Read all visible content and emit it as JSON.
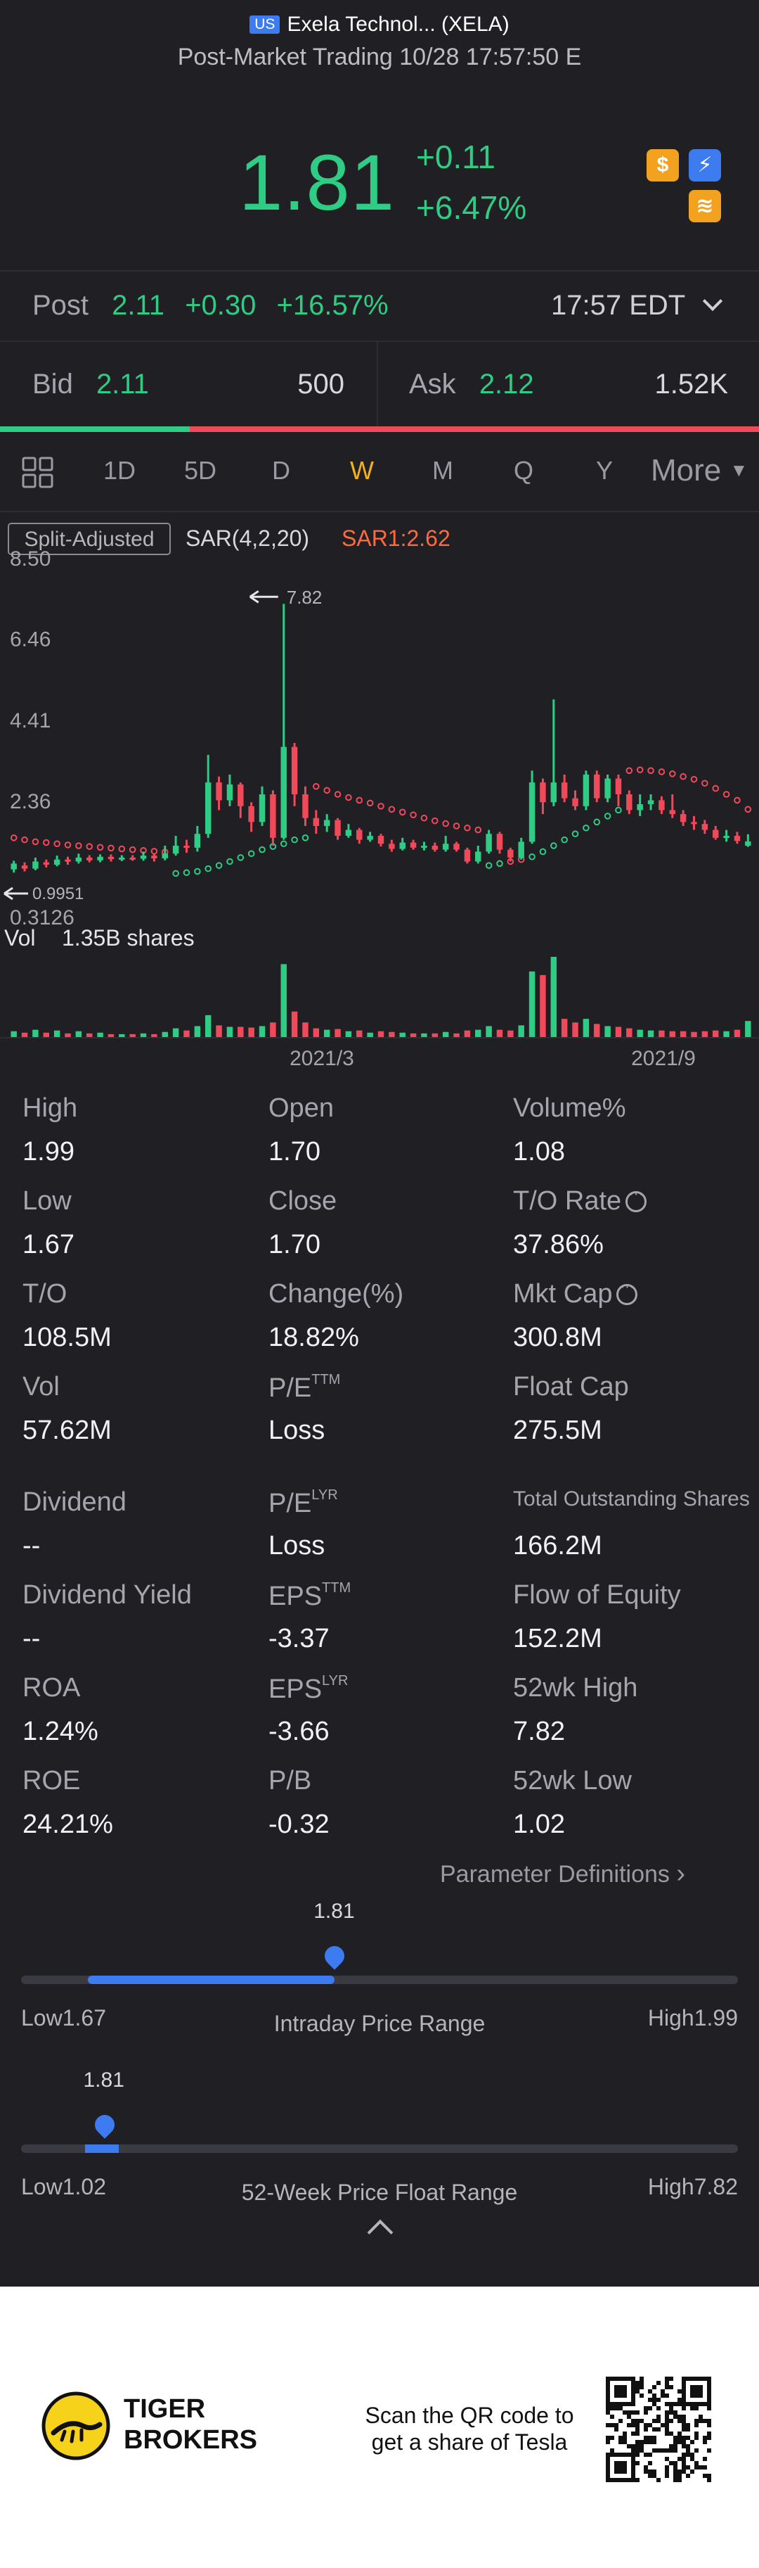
{
  "header": {
    "market_badge": "US",
    "title": "Exela Technol... (XELA)",
    "subtitle": "Post-Market Trading 10/28 17:57:50 E",
    "price": "1.81",
    "change": "+0.11",
    "change_pct": "+6.47%"
  },
  "post": {
    "label": "Post",
    "price": "2.11",
    "change": "+0.30",
    "change_pct": "+16.57%",
    "time": "17:57 EDT"
  },
  "quote": {
    "bid_label": "Bid",
    "bid_price": "2.11",
    "bid_size": "500",
    "ask_label": "Ask",
    "ask_price": "2.12",
    "ask_size": "1.52K",
    "bid_ratio": 0.25
  },
  "tabs": [
    {
      "label": "1D",
      "active": false
    },
    {
      "label": "5D",
      "active": false
    },
    {
      "label": "D",
      "active": false
    },
    {
      "label": "W",
      "active": true
    },
    {
      "label": "M",
      "active": false
    },
    {
      "label": "Q",
      "active": false
    },
    {
      "label": "Y",
      "active": false
    }
  ],
  "tabs_more": "More",
  "chart": {
    "adjust_label": "Split-Adjusted",
    "indicator": "SAR(4,2,20)",
    "indicator_value": "SAR1:2.62",
    "y_ticks": [
      "8.50",
      "6.46",
      "4.41",
      "2.36",
      "0.3126"
    ],
    "max_marker": "7.82",
    "min_marker": "0.9951",
    "vol_label": "Vol",
    "vol_value": "1.35B shares",
    "x_ticks": [
      "2021/3",
      "2021/9"
    ]
  },
  "chart_data": {
    "type": "candlestick",
    "ylim": [
      0.3126,
      8.5
    ],
    "bars": [
      {
        "o": 1.1,
        "c": 1.25,
        "h": 1.32,
        "l": 1.02,
        "v": 0.8
      },
      {
        "o": 1.2,
        "c": 1.12,
        "h": 1.28,
        "l": 1.05,
        "v": 0.6
      },
      {
        "o": 1.12,
        "c": 1.3,
        "h": 1.4,
        "l": 1.08,
        "v": 1.0
      },
      {
        "o": 1.28,
        "c": 1.22,
        "h": 1.35,
        "l": 1.15,
        "v": 0.6
      },
      {
        "o": 1.22,
        "c": 1.35,
        "h": 1.45,
        "l": 1.18,
        "v": 0.9
      },
      {
        "o": 1.35,
        "c": 1.3,
        "h": 1.42,
        "l": 1.22,
        "v": 0.5
      },
      {
        "o": 1.3,
        "c": 1.4,
        "h": 1.5,
        "l": 1.25,
        "v": 0.8
      },
      {
        "o": 1.4,
        "c": 1.33,
        "h": 1.46,
        "l": 1.28,
        "v": 0.5
      },
      {
        "o": 1.33,
        "c": 1.42,
        "h": 1.48,
        "l": 1.28,
        "v": 0.6
      },
      {
        "o": 1.42,
        "c": 1.36,
        "h": 1.48,
        "l": 1.3,
        "v": 0.4
      },
      {
        "o": 1.36,
        "c": 1.4,
        "h": 1.46,
        "l": 1.31,
        "v": 0.4
      },
      {
        "o": 1.4,
        "c": 1.37,
        "h": 1.46,
        "l": 1.32,
        "v": 0.4
      },
      {
        "o": 1.37,
        "c": 1.45,
        "h": 1.55,
        "l": 1.32,
        "v": 0.5
      },
      {
        "o": 1.45,
        "c": 1.38,
        "h": 1.5,
        "l": 1.3,
        "v": 0.4
      },
      {
        "o": 1.38,
        "c": 1.5,
        "h": 1.7,
        "l": 1.33,
        "v": 0.7
      },
      {
        "o": 1.5,
        "c": 1.7,
        "h": 1.95,
        "l": 1.45,
        "v": 1.2
      },
      {
        "o": 1.7,
        "c": 1.65,
        "h": 1.85,
        "l": 1.52,
        "v": 0.9
      },
      {
        "o": 1.65,
        "c": 2.0,
        "h": 2.2,
        "l": 1.55,
        "v": 1.5
      },
      {
        "o": 2.0,
        "c": 3.3,
        "h": 4.0,
        "l": 1.9,
        "v": 3.0
      },
      {
        "o": 3.3,
        "c": 2.85,
        "h": 3.45,
        "l": 2.6,
        "v": 1.6
      },
      {
        "o": 2.85,
        "c": 3.25,
        "h": 3.5,
        "l": 2.7,
        "v": 1.4
      },
      {
        "o": 3.25,
        "c": 2.7,
        "h": 3.3,
        "l": 2.4,
        "v": 1.4
      },
      {
        "o": 2.7,
        "c": 2.3,
        "h": 2.8,
        "l": 2.05,
        "v": 1.3
      },
      {
        "o": 2.3,
        "c": 3.0,
        "h": 3.2,
        "l": 2.2,
        "v": 1.5
      },
      {
        "o": 3.0,
        "c": 1.9,
        "h": 3.1,
        "l": 1.7,
        "v": 2.0
      },
      {
        "o": 1.9,
        "c": 4.2,
        "h": 7.82,
        "l": 1.85,
        "v": 10.0
      },
      {
        "o": 4.2,
        "c": 3.0,
        "h": 4.3,
        "l": 2.7,
        "v": 3.5
      },
      {
        "o": 3.0,
        "c": 2.4,
        "h": 3.2,
        "l": 2.2,
        "v": 2.0
      },
      {
        "o": 2.4,
        "c": 2.2,
        "h": 2.6,
        "l": 2.0,
        "v": 1.2
      },
      {
        "o": 2.2,
        "c": 2.35,
        "h": 2.5,
        "l": 2.05,
        "v": 1.0
      },
      {
        "o": 2.35,
        "c": 1.95,
        "h": 2.4,
        "l": 1.85,
        "v": 1.1
      },
      {
        "o": 1.95,
        "c": 2.1,
        "h": 2.25,
        "l": 1.9,
        "v": 0.8
      },
      {
        "o": 2.1,
        "c": 1.85,
        "h": 2.15,
        "l": 1.75,
        "v": 0.9
      },
      {
        "o": 1.85,
        "c": 1.95,
        "h": 2.05,
        "l": 1.8,
        "v": 0.6
      },
      {
        "o": 1.95,
        "c": 1.75,
        "h": 2.0,
        "l": 1.68,
        "v": 0.8
      },
      {
        "o": 1.75,
        "c": 1.62,
        "h": 1.85,
        "l": 1.55,
        "v": 0.7
      },
      {
        "o": 1.62,
        "c": 1.78,
        "h": 1.9,
        "l": 1.58,
        "v": 0.6
      },
      {
        "o": 1.78,
        "c": 1.65,
        "h": 1.85,
        "l": 1.6,
        "v": 0.5
      },
      {
        "o": 1.65,
        "c": 1.7,
        "h": 1.8,
        "l": 1.58,
        "v": 0.5
      },
      {
        "o": 1.7,
        "c": 1.6,
        "h": 1.78,
        "l": 1.55,
        "v": 0.5
      },
      {
        "o": 1.6,
        "c": 1.75,
        "h": 1.95,
        "l": 1.55,
        "v": 0.7
      },
      {
        "o": 1.75,
        "c": 1.6,
        "h": 1.8,
        "l": 1.55,
        "v": 0.5
      },
      {
        "o": 1.6,
        "c": 1.3,
        "h": 1.65,
        "l": 1.25,
        "v": 0.9
      },
      {
        "o": 1.3,
        "c": 1.55,
        "h": 1.7,
        "l": 1.25,
        "v": 1.0
      },
      {
        "o": 1.55,
        "c": 2.0,
        "h": 2.1,
        "l": 1.5,
        "v": 1.5
      },
      {
        "o": 2.0,
        "c": 1.6,
        "h": 2.05,
        "l": 1.5,
        "v": 1.0
      },
      {
        "o": 1.6,
        "c": 1.4,
        "h": 1.65,
        "l": 1.3,
        "v": 0.9
      },
      {
        "o": 1.4,
        "c": 1.8,
        "h": 1.9,
        "l": 1.35,
        "v": 1.6
      },
      {
        "o": 1.8,
        "c": 3.3,
        "h": 3.6,
        "l": 1.75,
        "v": 9.0
      },
      {
        "o": 3.3,
        "c": 2.8,
        "h": 3.4,
        "l": 2.5,
        "v": 8.5
      },
      {
        "o": 2.8,
        "c": 3.3,
        "h": 5.4,
        "l": 2.7,
        "v": 11.0
      },
      {
        "o": 3.3,
        "c": 2.9,
        "h": 3.5,
        "l": 2.8,
        "v": 2.5
      },
      {
        "o": 2.9,
        "c": 2.7,
        "h": 3.1,
        "l": 2.6,
        "v": 2.0
      },
      {
        "o": 2.7,
        "c": 3.5,
        "h": 3.6,
        "l": 2.6,
        "v": 2.5
      },
      {
        "o": 3.5,
        "c": 2.9,
        "h": 3.6,
        "l": 2.8,
        "v": 1.8
      },
      {
        "o": 2.9,
        "c": 3.4,
        "h": 3.5,
        "l": 2.8,
        "v": 1.5
      },
      {
        "o": 3.4,
        "c": 3.0,
        "h": 3.5,
        "l": 2.7,
        "v": 1.4
      },
      {
        "o": 3.0,
        "c": 2.6,
        "h": 3.1,
        "l": 2.5,
        "v": 1.2
      },
      {
        "o": 2.6,
        "c": 2.75,
        "h": 3.0,
        "l": 2.45,
        "v": 1.0
      },
      {
        "o": 2.75,
        "c": 2.85,
        "h": 3.0,
        "l": 2.6,
        "v": 0.9
      },
      {
        "o": 2.85,
        "c": 2.6,
        "h": 2.95,
        "l": 2.5,
        "v": 0.9
      },
      {
        "o": 2.6,
        "c": 2.5,
        "h": 3.0,
        "l": 2.4,
        "v": 0.8
      },
      {
        "o": 2.5,
        "c": 2.3,
        "h": 2.6,
        "l": 2.2,
        "v": 0.8
      },
      {
        "o": 2.3,
        "c": 2.25,
        "h": 2.45,
        "l": 2.1,
        "v": 0.7
      },
      {
        "o": 2.25,
        "c": 2.1,
        "h": 2.35,
        "l": 2.0,
        "v": 0.8
      },
      {
        "o": 2.1,
        "c": 1.9,
        "h": 2.2,
        "l": 1.85,
        "v": 0.9
      },
      {
        "o": 1.9,
        "c": 1.95,
        "h": 2.1,
        "l": 1.8,
        "v": 0.8
      },
      {
        "o": 1.95,
        "c": 1.82,
        "h": 2.05,
        "l": 1.75,
        "v": 1.0
      },
      {
        "o": 1.7,
        "c": 1.81,
        "h": 1.99,
        "l": 1.67,
        "v": 2.2
      }
    ],
    "sar_points": [
      {
        "i": 0,
        "v": 1.9
      },
      {
        "i": 1,
        "v": 1.85
      },
      {
        "i": 2,
        "v": 1.8
      },
      {
        "i": 3,
        "v": 1.78
      },
      {
        "i": 4,
        "v": 1.75
      },
      {
        "i": 5,
        "v": 1.72
      },
      {
        "i": 6,
        "v": 1.7
      },
      {
        "i": 7,
        "v": 1.68
      },
      {
        "i": 8,
        "v": 1.66
      },
      {
        "i": 9,
        "v": 1.64
      },
      {
        "i": 10,
        "v": 1.62
      },
      {
        "i": 11,
        "v": 1.6
      },
      {
        "i": 12,
        "v": 1.58
      },
      {
        "i": 13,
        "v": 1.56
      },
      {
        "i": 14,
        "v": 1.54
      },
      {
        "i": 15,
        "v": 1.0
      },
      {
        "i": 16,
        "v": 1.02
      },
      {
        "i": 17,
        "v": 1.05
      },
      {
        "i": 18,
        "v": 1.12
      },
      {
        "i": 19,
        "v": 1.2
      },
      {
        "i": 20,
        "v": 1.3
      },
      {
        "i": 21,
        "v": 1.4
      },
      {
        "i": 22,
        "v": 1.5
      },
      {
        "i": 23,
        "v": 1.6
      },
      {
        "i": 24,
        "v": 1.68
      },
      {
        "i": 25,
        "v": 1.75
      },
      {
        "i": 26,
        "v": 1.85
      },
      {
        "i": 27,
        "v": 1.9
      },
      {
        "i": 28,
        "v": 3.2
      },
      {
        "i": 29,
        "v": 3.1
      },
      {
        "i": 30,
        "v": 3.0
      },
      {
        "i": 31,
        "v": 2.92
      },
      {
        "i": 32,
        "v": 2.85
      },
      {
        "i": 33,
        "v": 2.78
      },
      {
        "i": 34,
        "v": 2.7
      },
      {
        "i": 35,
        "v": 2.62
      },
      {
        "i": 36,
        "v": 2.55
      },
      {
        "i": 37,
        "v": 2.48
      },
      {
        "i": 38,
        "v": 2.4
      },
      {
        "i": 39,
        "v": 2.33
      },
      {
        "i": 40,
        "v": 2.26
      },
      {
        "i": 41,
        "v": 2.2
      },
      {
        "i": 42,
        "v": 2.15
      },
      {
        "i": 43,
        "v": 2.1
      },
      {
        "i": 44,
        "v": 1.2
      },
      {
        "i": 45,
        "v": 1.25
      },
      {
        "i": 46,
        "v": 1.3
      },
      {
        "i": 47,
        "v": 1.35
      },
      {
        "i": 48,
        "v": 1.42
      },
      {
        "i": 49,
        "v": 1.55
      },
      {
        "i": 50,
        "v": 1.7
      },
      {
        "i": 51,
        "v": 1.85
      },
      {
        "i": 52,
        "v": 2.0
      },
      {
        "i": 53,
        "v": 2.15
      },
      {
        "i": 54,
        "v": 2.3
      },
      {
        "i": 55,
        "v": 2.45
      },
      {
        "i": 56,
        "v": 2.6
      },
      {
        "i": 57,
        "v": 3.6
      },
      {
        "i": 58,
        "v": 3.62
      },
      {
        "i": 59,
        "v": 3.6
      },
      {
        "i": 60,
        "v": 3.57
      },
      {
        "i": 61,
        "v": 3.52
      },
      {
        "i": 62,
        "v": 3.45
      },
      {
        "i": 63,
        "v": 3.38
      },
      {
        "i": 64,
        "v": 3.28
      },
      {
        "i": 65,
        "v": 3.15
      },
      {
        "i": 66,
        "v": 3.0
      },
      {
        "i": 67,
        "v": 2.85
      },
      {
        "i": 68,
        "v": 2.62
      }
    ],
    "colors": {
      "up": "#2ecc84",
      "down": "#f04a5a",
      "sar_up": "#2ecc84",
      "sar_down": "#f04a5a"
    }
  },
  "stats": [
    [
      {
        "label": "High",
        "val": "1.99"
      },
      {
        "label": "Open",
        "val": "1.70"
      },
      {
        "label": "Volume%",
        "val": "1.08"
      }
    ],
    [
      {
        "label": "Low",
        "val": "1.67"
      },
      {
        "label": "Close",
        "val": "1.70"
      },
      {
        "label": "T/O Rate",
        "val": "37.86%",
        "info": true
      }
    ],
    [
      {
        "label": "T/O",
        "val": "108.5M"
      },
      {
        "label": "Change(%)",
        "val": "18.82%"
      },
      {
        "label": "Mkt Cap",
        "val": "300.8M",
        "info": true
      }
    ],
    [
      {
        "label": "Vol",
        "val": "57.62M"
      },
      {
        "label": "P/E",
        "sup": "TTM",
        "val": "Loss"
      },
      {
        "label": "Float Cap",
        "val": "275.5M"
      }
    ],
    [
      {
        "label": "Dividend",
        "val": "--"
      },
      {
        "label": "P/E",
        "sup": "LYR",
        "val": "Loss"
      },
      {
        "label": "Total Outstanding Shares",
        "val": "166.2M",
        "small": true
      }
    ],
    [
      {
        "label": "Dividend Yield",
        "val": "--"
      },
      {
        "label": "EPS",
        "sup": "TTM",
        "val": "-3.37"
      },
      {
        "label": "Flow of Equity",
        "val": "152.2M"
      }
    ],
    [
      {
        "label": "ROA",
        "val": "1.24%"
      },
      {
        "label": "EPS",
        "sup": "LYR",
        "val": "-3.66"
      },
      {
        "label": "52wk High",
        "val": "7.82"
      }
    ],
    [
      {
        "label": "ROE",
        "val": "24.21%"
      },
      {
        "label": "P/B",
        "val": "-0.32"
      },
      {
        "label": "52wk Low",
        "val": "1.02"
      }
    ]
  ],
  "param_link": "Parameter Definitions",
  "intraday": {
    "current": "1.81",
    "low_label": "Low1.67",
    "high_label": "High1.99",
    "title": "Intraday Price Range",
    "low": 1.67,
    "high": 1.99,
    "value": 1.81
  },
  "week52": {
    "current": "1.81",
    "low_label": "Low1.02",
    "high_label": "High7.82",
    "title": "52-Week Price Float Range",
    "low": 1.02,
    "high": 7.82,
    "value": 1.81
  },
  "footer": {
    "brand_line1": "TIGER",
    "brand_line2": "BROKERS",
    "cta_line1": "Scan the QR code to",
    "cta_line2": "get a share of Tesla"
  }
}
